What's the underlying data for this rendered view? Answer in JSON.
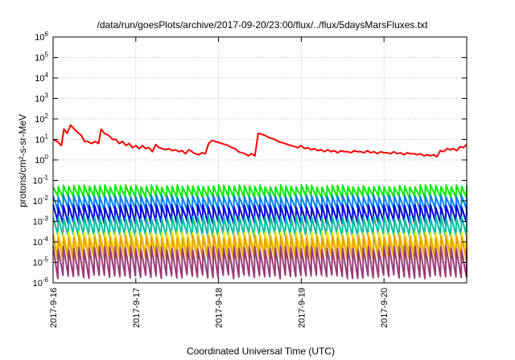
{
  "chart_data": {
    "type": "line",
    "title": "/data/run/goesPlots/archive/2017-09-20/23:00/flux/../flux/5daysMarsFluxes.txt",
    "xlabel": "Coordinated Universal Time (UTC)",
    "ylabel": "protons/cm²-s-sr-MeV",
    "yscale": "log",
    "ylim_exp": [
      -6,
      6
    ],
    "ytick_exps": [
      -6,
      -5,
      -4,
      -3,
      -2,
      -1,
      0,
      1,
      2,
      3,
      4,
      5,
      6
    ],
    "xlim_days": [
      0,
      5
    ],
    "xticks": [
      "2017-9-16",
      "2017-9-17",
      "2017-9-18",
      "2017-9-19",
      "2017-9-20"
    ],
    "grid": true,
    "legend": "none",
    "series": [
      {
        "color": "#ff0000",
        "width": 2,
        "points": [
          [
            0.0,
            1.0
          ],
          [
            0.05,
            0.9
          ],
          [
            0.1,
            0.7
          ],
          [
            0.13,
            1.5
          ],
          [
            0.17,
            1.3
          ],
          [
            0.21,
            1.7
          ],
          [
            0.28,
            1.4
          ],
          [
            0.34,
            1.2
          ],
          [
            0.38,
            0.9
          ],
          [
            0.42,
            0.9
          ],
          [
            0.46,
            0.8
          ],
          [
            0.51,
            0.9
          ],
          [
            0.55,
            0.8
          ],
          [
            0.58,
            1.5
          ],
          [
            0.62,
            1.3
          ],
          [
            0.67,
            1.2
          ],
          [
            0.72,
            1.0
          ],
          [
            0.76,
            1.0
          ],
          [
            0.8,
            0.8
          ],
          [
            0.84,
            0.9
          ],
          [
            0.88,
            0.7
          ],
          [
            0.92,
            0.8
          ],
          [
            0.96,
            0.6
          ],
          [
            1.0,
            0.7
          ],
          [
            1.04,
            0.55
          ],
          [
            1.08,
            0.7
          ],
          [
            1.12,
            0.55
          ],
          [
            1.16,
            0.6
          ],
          [
            1.2,
            0.4
          ],
          [
            1.24,
            0.75
          ],
          [
            1.28,
            0.6
          ],
          [
            1.32,
            0.55
          ],
          [
            1.36,
            0.5
          ],
          [
            1.4,
            0.55
          ],
          [
            1.44,
            0.45
          ],
          [
            1.48,
            0.5
          ],
          [
            1.52,
            0.4
          ],
          [
            1.56,
            0.45
          ],
          [
            1.6,
            0.3
          ],
          [
            1.64,
            0.5
          ],
          [
            1.68,
            0.4
          ],
          [
            1.72,
            0.3
          ],
          [
            1.76,
            0.25
          ],
          [
            1.8,
            0.35
          ],
          [
            1.84,
            0.3
          ],
          [
            1.88,
            0.8
          ],
          [
            1.92,
            0.95
          ],
          [
            1.96,
            0.9
          ],
          [
            2.0,
            0.85
          ],
          [
            2.04,
            0.8
          ],
          [
            2.08,
            0.75
          ],
          [
            2.12,
            0.7
          ],
          [
            2.16,
            0.6
          ],
          [
            2.2,
            0.55
          ],
          [
            2.24,
            0.4
          ],
          [
            2.28,
            0.35
          ],
          [
            2.32,
            0.3
          ],
          [
            2.36,
            0.2
          ],
          [
            2.4,
            0.3
          ],
          [
            2.44,
            0.2
          ],
          [
            2.48,
            1.3
          ],
          [
            2.52,
            1.25
          ],
          [
            2.56,
            1.2
          ],
          [
            2.6,
            1.1
          ],
          [
            2.64,
            1.05
          ],
          [
            2.68,
            1.0
          ],
          [
            2.72,
            0.9
          ],
          [
            2.76,
            0.85
          ],
          [
            2.8,
            0.8
          ],
          [
            2.84,
            0.75
          ],
          [
            2.88,
            0.7
          ],
          [
            2.92,
            0.65
          ],
          [
            2.96,
            0.6
          ],
          [
            3.0,
            0.7
          ],
          [
            3.04,
            0.55
          ],
          [
            3.08,
            0.6
          ],
          [
            3.12,
            0.5
          ],
          [
            3.16,
            0.55
          ],
          [
            3.2,
            0.45
          ],
          [
            3.24,
            0.5
          ],
          [
            3.28,
            0.4
          ],
          [
            3.32,
            0.5
          ],
          [
            3.36,
            0.4
          ],
          [
            3.4,
            0.45
          ],
          [
            3.44,
            0.35
          ],
          [
            3.48,
            0.45
          ],
          [
            3.52,
            0.4
          ],
          [
            3.56,
            0.4
          ],
          [
            3.6,
            0.35
          ],
          [
            3.64,
            0.45
          ],
          [
            3.68,
            0.4
          ],
          [
            3.72,
            0.4
          ],
          [
            3.76,
            0.35
          ],
          [
            3.8,
            0.45
          ],
          [
            3.84,
            0.35
          ],
          [
            3.88,
            0.4
          ],
          [
            3.92,
            0.3
          ],
          [
            3.96,
            0.4
          ],
          [
            4.0,
            0.35
          ],
          [
            4.04,
            0.35
          ],
          [
            4.08,
            0.3
          ],
          [
            4.12,
            0.4
          ],
          [
            4.16,
            0.3
          ],
          [
            4.2,
            0.35
          ],
          [
            4.24,
            0.25
          ],
          [
            4.28,
            0.35
          ],
          [
            4.32,
            0.3
          ],
          [
            4.36,
            0.3
          ],
          [
            4.4,
            0.25
          ],
          [
            4.44,
            0.3
          ],
          [
            4.48,
            0.2
          ],
          [
            4.52,
            0.25
          ],
          [
            4.56,
            0.2
          ],
          [
            4.6,
            0.25
          ],
          [
            4.64,
            0.15
          ],
          [
            4.68,
            0.45
          ],
          [
            4.72,
            0.4
          ],
          [
            4.76,
            0.55
          ],
          [
            4.8,
            0.5
          ],
          [
            4.84,
            0.55
          ],
          [
            4.88,
            0.45
          ],
          [
            4.92,
            0.65
          ],
          [
            4.96,
            0.6
          ],
          [
            5.0,
            0.75
          ]
        ]
      },
      {
        "color": "#00ee00",
        "width": 2,
        "base": -1.55,
        "amp": 0.55,
        "period": 0.0625,
        "noise": 0.12
      },
      {
        "color": "#0080ff",
        "width": 2,
        "base": -2.1,
        "amp": 0.65,
        "period": 0.0625,
        "noise": 0.12
      },
      {
        "color": "#0000dd",
        "width": 2,
        "base": -2.65,
        "amp": 0.8,
        "period": 0.0625,
        "noise": 0.15
      },
      {
        "color": "#00bfa0",
        "width": 2,
        "base": -3.25,
        "amp": 0.9,
        "period": 0.0625,
        "noise": 0.15
      },
      {
        "color": "#ffe600",
        "width": 2,
        "base": -4.05,
        "amp": 1.0,
        "period": 0.0625,
        "noise": 0.15
      },
      {
        "color": "#e8a000",
        "width": 2,
        "base": -4.3,
        "amp": 1.1,
        "period": 0.0625,
        "noise": 0.15
      },
      {
        "color": "#9a3a78",
        "width": 2,
        "base": -5.0,
        "amp": 1.4,
        "period": 0.0625,
        "noise": 0.2
      }
    ]
  }
}
